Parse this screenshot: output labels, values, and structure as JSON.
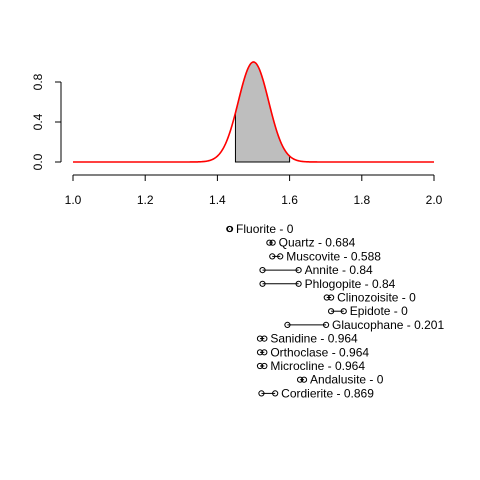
{
  "chart_data": {
    "type": "line",
    "title": "",
    "xlabel": "",
    "ylabel": "",
    "xlim": [
      1.0,
      2.0
    ],
    "ylim": [
      0.0,
      1.0
    ],
    "x_ticks": [
      "1.0",
      "1.2",
      "1.4",
      "1.6",
      "1.8",
      "2.0"
    ],
    "y_ticks": [
      "0.0",
      "0.4",
      "0.8"
    ],
    "density": {
      "peak_x": 1.5,
      "peak_y": 1.0,
      "sd": 0.042,
      "line_color": "#ff0000"
    },
    "shaded_range": {
      "from": 1.45,
      "to": 1.6,
      "fill_color": "#bebebe"
    },
    "minerals": [
      {
        "name": "Fluorite",
        "label": "Fluorite - 0",
        "low": 1.433,
        "high": 1.435
      },
      {
        "name": "Quartz",
        "label": "Quartz - 0.684",
        "low": 1.544,
        "high": 1.553
      },
      {
        "name": "Muscovite",
        "label": "Muscovite - 0.588",
        "low": 1.552,
        "high": 1.574
      },
      {
        "name": "Annite",
        "label": "Annite - 0.84",
        "low": 1.525,
        "high": 1.625
      },
      {
        "name": "Phlogopite",
        "label": "Phlogopite - 0.84",
        "low": 1.525,
        "high": 1.625
      },
      {
        "name": "Clinozoisite",
        "label": "Clinozoisite - 0",
        "low": 1.703,
        "high": 1.715
      },
      {
        "name": "Epidote",
        "label": "Epidote - 0",
        "low": 1.715,
        "high": 1.75
      },
      {
        "name": "Glaucophane",
        "label": "Glaucophane - 0.201",
        "low": 1.594,
        "high": 1.701
      },
      {
        "name": "Sanidine",
        "label": "Sanidine - 0.964",
        "low": 1.518,
        "high": 1.53
      },
      {
        "name": "Orthoclase",
        "label": "Orthoclase - 0.964",
        "low": 1.518,
        "high": 1.53
      },
      {
        "name": "Microcline",
        "label": "Microcline - 0.964",
        "low": 1.518,
        "high": 1.53
      },
      {
        "name": "Andalusite",
        "label": "Andalusite - 0",
        "low": 1.629,
        "high": 1.64
      },
      {
        "name": "Cordierite",
        "label": "Cordierite - 0.869",
        "low": 1.522,
        "high": 1.56
      }
    ]
  }
}
